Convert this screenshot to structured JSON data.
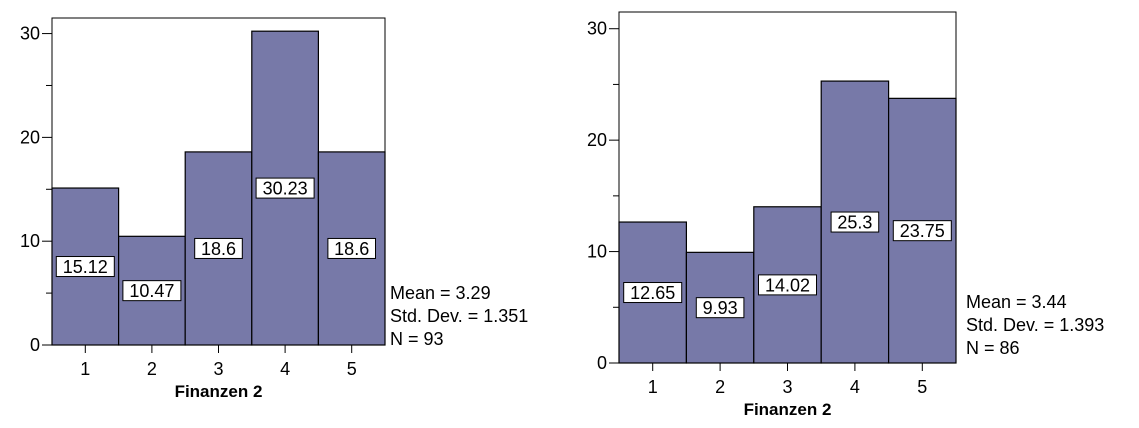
{
  "chart_data": [
    {
      "type": "bar",
      "categories": [
        "1",
        "2",
        "3",
        "4",
        "5"
      ],
      "values": [
        15.12,
        10.47,
        18.6,
        30.23,
        18.6
      ],
      "bar_labels": [
        "15.12",
        "10.47",
        "18.6",
        "30.23",
        "18.6"
      ],
      "xlabel": "Finanzen 2",
      "ylabel": "",
      "ylim": [
        0,
        31.5
      ],
      "yticks": [
        0,
        10,
        20,
        30
      ],
      "ytick_labels": [
        "0",
        "10",
        "20",
        "30"
      ],
      "grid": false,
      "stats": [
        "Mean = 3.29",
        "Std. Dev. = 1.351",
        "N = 93"
      ],
      "colors": {
        "bar": "#7779a8",
        "edge": "#000000"
      }
    },
    {
      "type": "bar",
      "categories": [
        "1",
        "2",
        "3",
        "4",
        "5"
      ],
      "values": [
        12.65,
        9.93,
        14.02,
        25.3,
        23.75
      ],
      "bar_labels": [
        "12.65",
        "9.93",
        "14.02",
        "25.3",
        "23.75"
      ],
      "xlabel": "Finanzen 2",
      "ylabel": "",
      "ylim": [
        0,
        31.5
      ],
      "yticks": [
        0,
        10,
        20,
        30
      ],
      "ytick_labels": [
        "0",
        "10",
        "20",
        "30"
      ],
      "grid": false,
      "stats": [
        "Mean = 3.44",
        "Std. Dev. = 1.393",
        "N = 86"
      ],
      "colors": {
        "bar": "#7779a8",
        "edge": "#000000"
      }
    }
  ]
}
